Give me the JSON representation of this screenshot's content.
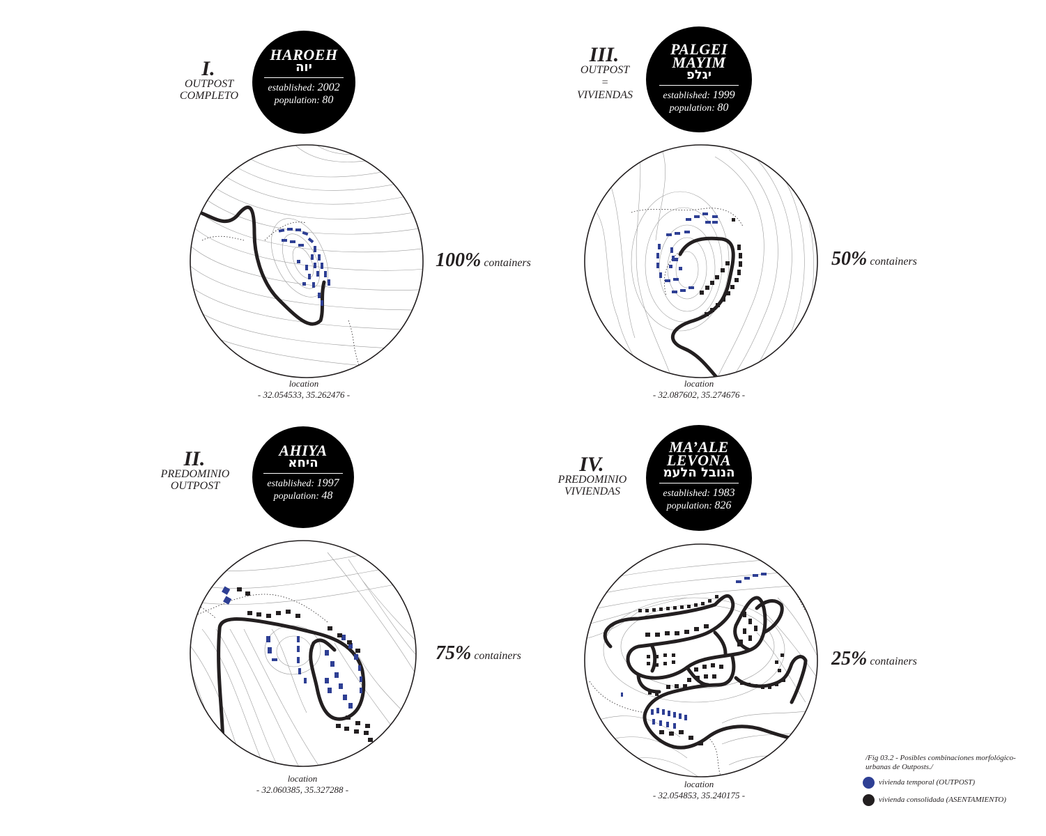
{
  "cases": [
    {
      "id": "haroeh",
      "numeral": "I.",
      "type_lines": [
        "OUTPOST",
        "COMPLETO"
      ],
      "name_lines": [
        "HAROEH"
      ],
      "hebrew": "יוה",
      "established_label": "established:",
      "established": "2002",
      "population_label": "population:",
      "population": "80",
      "pct": "100%",
      "pct_word": "containers",
      "location_label": "location",
      "location": "- 32.054533, 35.262476 -"
    },
    {
      "id": "palgei",
      "numeral": "III.",
      "type_lines": [
        "OUTPOST",
        "=",
        "VIVIENDAS"
      ],
      "name_lines": [
        "PALGEI",
        "MAYIM"
      ],
      "hebrew": "יגלפ",
      "established_label": "established:",
      "established": "1999",
      "population_label": "population:",
      "population": "80",
      "pct": "50%",
      "pct_word": "containers",
      "location_label": "location",
      "location": "- 32.087602, 35.274676 -"
    },
    {
      "id": "ahiya",
      "numeral": "II.",
      "type_lines": [
        "PREDOMINIO",
        "OUTPOST"
      ],
      "name_lines": [
        "AHIYA"
      ],
      "hebrew": "היחא",
      "established_label": "established:",
      "established": "1997",
      "population_label": "population:",
      "population": "48",
      "pct": "75%",
      "pct_word": "containers",
      "location_label": "location",
      "location": "- 32.060385, 35.327288 -"
    },
    {
      "id": "maale",
      "numeral": "IV.",
      "type_lines": [
        "PREDOMINIO",
        "VIVIENDAS"
      ],
      "name_lines": [
        "MA’ALE",
        "LEVONA"
      ],
      "hebrew": "הנובל הלעמ",
      "established_label": "established:",
      "established": "1983",
      "population_label": "population:",
      "population": "826",
      "pct": "25%",
      "pct_word": "containers",
      "location_label": "location",
      "location": "- 32.054853, 35.240175 -"
    }
  ],
  "caption": "/Fig 03.2 - Posibles combinaciones morfológico-urbanas de Outposts./",
  "legend": [
    {
      "label": "vivienda temporal (OUTPOST)",
      "color": "#2e3f94"
    },
    {
      "label": "vivienda consolidada (ASENTAMIENTO)",
      "color": "#231f20"
    }
  ],
  "colors": {
    "outpost": "#2e3f94",
    "settlement": "#231f20",
    "contour": "#9a9a9a"
  }
}
